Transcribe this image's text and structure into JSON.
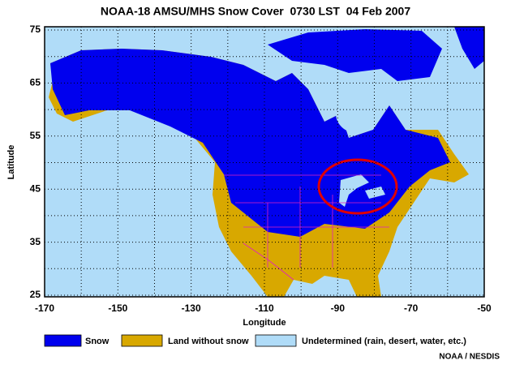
{
  "title": "NOAA-18 AMSU/MHS Snow Cover  0730 LST  04 Feb 2007",
  "map": {
    "xlabel": "Longitude",
    "ylabel": "Latitude",
    "xlim": [
      -170,
      -50
    ],
    "ylim": [
      25,
      75
    ],
    "xticks": [
      -170,
      -150,
      -130,
      -110,
      -90,
      -70,
      -50
    ],
    "yticks": [
      25,
      35,
      45,
      55,
      65,
      75
    ],
    "ocean_color": "#b0dcf8",
    "land_color": "#d8a800",
    "snow_color": "#0000ee",
    "legend": [
      {
        "label": "Snow",
        "color": "#0000ee"
      },
      {
        "label": "Land without snow",
        "color": "#d8a800"
      },
      {
        "label": "Undetermined (rain, desert, water, etc.)",
        "color": "#b0dcf8"
      }
    ],
    "credit": "NOAA / NESDIS"
  }
}
